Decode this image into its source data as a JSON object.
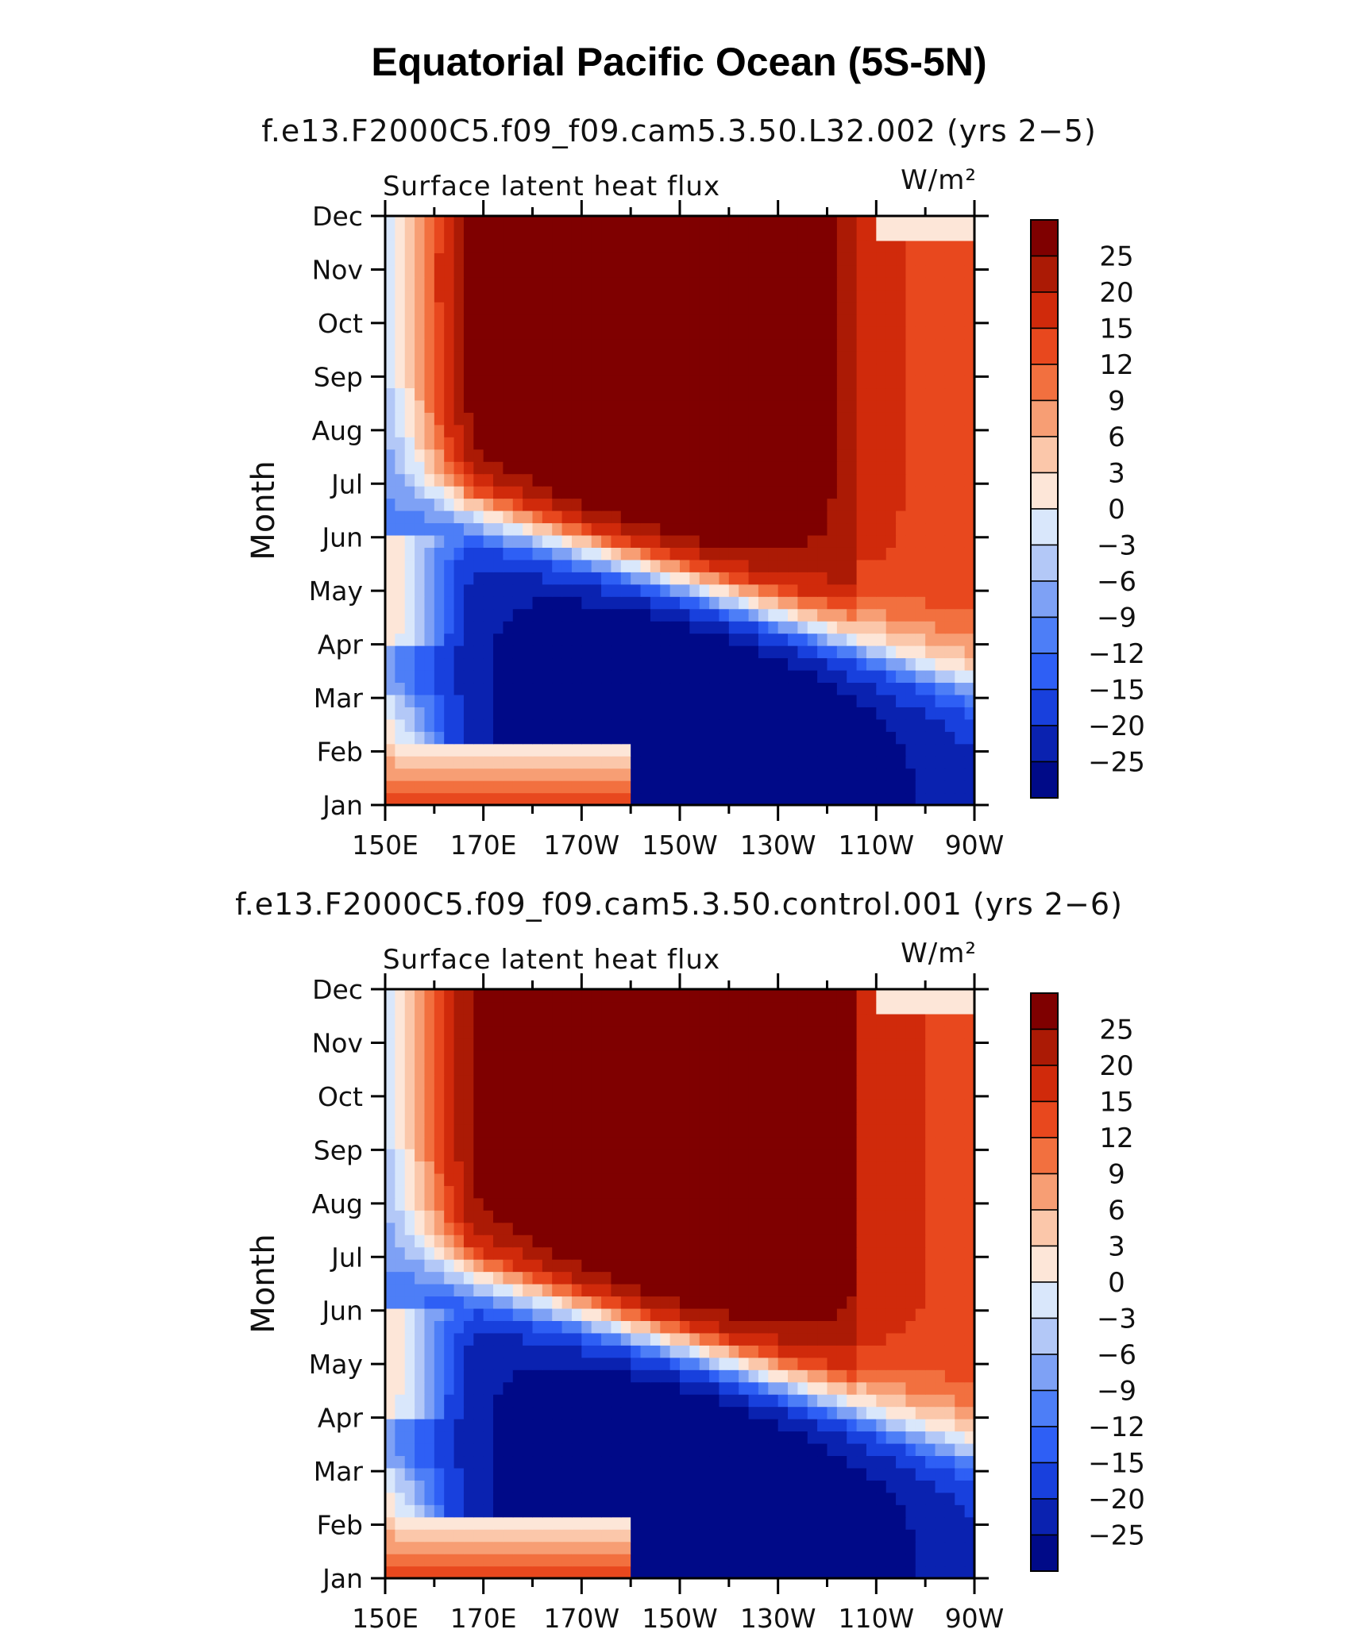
{
  "figure": {
    "title": "Equatorial Pacific Ocean (5S-5N)"
  },
  "colors": {
    "levels_palette": [
      "#000a88",
      "#0a22b0",
      "#1840dd",
      "#2e5ff5",
      "#4d7ef7",
      "#7ea1f5",
      "#b3c8f7",
      "#d9e7fb",
      "#fde6d8",
      "#fbc7aa",
      "#f79e74",
      "#f2703f",
      "#e8481e",
      "#d02a0b",
      "#ab1a05",
      "#7f0000"
    ]
  },
  "chart_data": [
    {
      "type": "heatmap",
      "panel_title": "f.e13.F2000C5.f09_f09.cam5.3.50.L32.002 (yrs 2−5)",
      "variable": "Surface latent heat flux",
      "units": "W/m²",
      "xlabel": "",
      "ylabel": "Month",
      "x_ticks": [
        "150E",
        "170E",
        "170W",
        "150W",
        "130W",
        "110W",
        "90W"
      ],
      "x_lon_range": [
        150,
        270
      ],
      "y_ticks": [
        "Jan",
        "Feb",
        "Mar",
        "Apr",
        "May",
        "Jun",
        "Jul",
        "Aug",
        "Sep",
        "Oct",
        "Nov",
        "Dec"
      ],
      "colorbar_levels": [
        "25",
        "20",
        "15",
        "12",
        "9",
        "6",
        "3",
        "0",
        "−3",
        "−6",
        "−9",
        "−12",
        "−15",
        "−20",
        "−25"
      ],
      "contour_levels": [
        -25,
        -20,
        -15,
        -12,
        -9,
        -6,
        -3,
        0,
        3,
        6,
        9,
        12,
        15,
        20,
        25
      ],
      "approx_field_summary": "negative (blue) anomalies Jan-May in central/east Pacific reaching below -25; positive (red) anomalies Jul-Dec reaching above 25, boundary propagating westward"
    },
    {
      "type": "heatmap",
      "panel_title": "f.e13.F2000C5.f09_f09.cam5.3.50.control.001 (yrs 2−6)",
      "variable": "Surface latent heat flux",
      "units": "W/m²",
      "xlabel": "",
      "ylabel": "Month",
      "x_ticks": [
        "150E",
        "170E",
        "170W",
        "150W",
        "130W",
        "110W",
        "90W"
      ],
      "x_lon_range": [
        150,
        270
      ],
      "y_ticks": [
        "Jan",
        "Feb",
        "Mar",
        "Apr",
        "May",
        "Jun",
        "Jul",
        "Aug",
        "Sep",
        "Oct",
        "Nov",
        "Dec"
      ],
      "colorbar_levels": [
        "25",
        "20",
        "15",
        "12",
        "9",
        "6",
        "3",
        "0",
        "−3",
        "−6",
        "−9",
        "−12",
        "−15",
        "−20",
        "−25"
      ],
      "contour_levels": [
        -25,
        -20,
        -15,
        -12,
        -9,
        -6,
        -3,
        0,
        3,
        6,
        9,
        12,
        15,
        20,
        25
      ],
      "approx_field_summary": "similar seasonal pattern: blue minimum Feb-May east of 170W, red maximum Aug-Nov near 160W-120W"
    }
  ]
}
